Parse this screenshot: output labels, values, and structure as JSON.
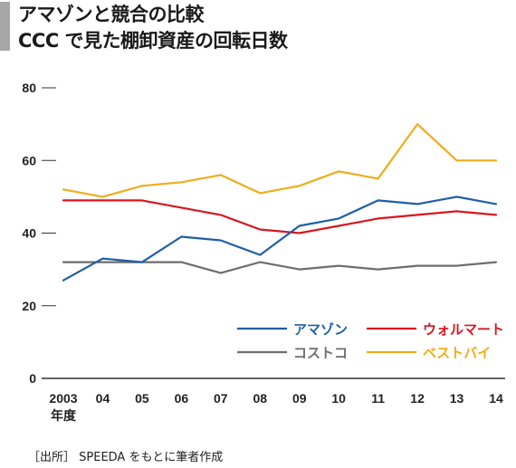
{
  "title": {
    "line1": "アマゾンと競合の比較",
    "line2": "CCC で見た棚卸資産の回転日数"
  },
  "source": "［出所］ SPEEDA をもとに筆者作成",
  "chart_data": {
    "type": "line",
    "categories": [
      "2003",
      "04",
      "05",
      "06",
      "07",
      "08",
      "09",
      "10",
      "11",
      "12",
      "13",
      "14"
    ],
    "x_unit_label": "年度",
    "ylim": [
      0,
      80
    ],
    "yticks": [
      0,
      20,
      40,
      60,
      80
    ],
    "grid": false,
    "legend_position": "bottom-right",
    "series": [
      {
        "name": "アマゾン",
        "color": "#1f5ea8",
        "values": [
          27,
          33,
          32,
          39,
          38,
          34,
          42,
          44,
          49,
          48,
          50,
          48
        ]
      },
      {
        "name": "ウォルマート",
        "color": "#d7171f",
        "values": [
          49,
          49,
          49,
          47,
          45,
          41,
          40,
          42,
          44,
          45,
          46,
          45
        ]
      },
      {
        "name": "コストコ",
        "color": "#6e6e6e",
        "values": [
          32,
          32,
          32,
          32,
          29,
          32,
          30,
          31,
          30,
          31,
          31,
          32
        ]
      },
      {
        "name": "ベストバイ",
        "color": "#f0ac1c",
        "values": [
          52,
          50,
          53,
          54,
          56,
          51,
          53,
          57,
          55,
          70,
          60,
          60
        ]
      }
    ]
  }
}
